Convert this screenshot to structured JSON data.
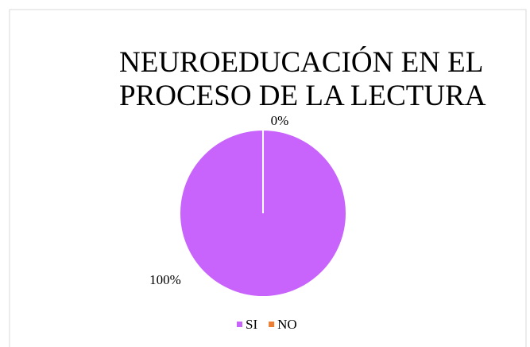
{
  "chart_data": {
    "type": "pie",
    "title": "NEUROEDUCACIÓN EN EL PROCESO DE LA LECTURA",
    "categories": [
      "SI",
      "NO"
    ],
    "values": [
      100,
      0
    ],
    "value_labels": [
      "100%",
      "0%"
    ],
    "colors": [
      "#c864fc",
      "#ed7d31"
    ],
    "legend": "bottom"
  }
}
